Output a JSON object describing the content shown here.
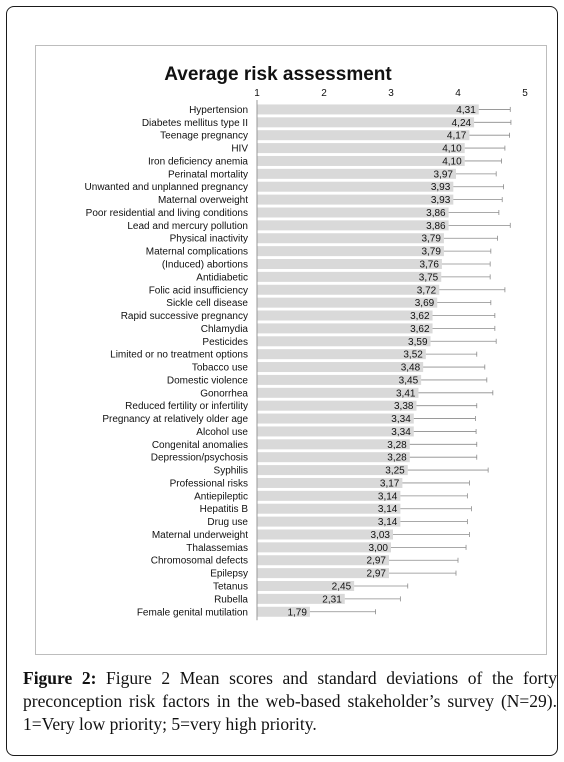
{
  "caption": {
    "figure_label": "Figure 2:",
    "text": " Figure 2 Mean scores and standard deviations of the forty preconception risk factors in the web-based stakeholder’s survey (N=29). 1=Very low priority; 5=very high priority."
  },
  "chart_data": {
    "type": "bar",
    "orientation": "horizontal",
    "title": "Average risk assessment",
    "xlim": [
      1,
      5
    ],
    "xticks": [
      "1",
      "2",
      "3",
      "4",
      "5"
    ],
    "bar_color": "#d9d9d9",
    "errorbar_color": "#8c8c8c",
    "categories": [
      "Hypertension",
      "Diabetes mellitus type II",
      "Teenage pregnancy",
      "HIV",
      "Iron deficiency anemia",
      "Perinatal mortality",
      "Unwanted and unplanned pregnancy",
      "Maternal overweight",
      "Poor residential and living conditions",
      "Lead and mercury pollution",
      "Physical inactivity",
      "Maternal complications",
      "(Induced) abortions",
      "Antidiabetic",
      "Folic acid insufficiency",
      "Sickle cell disease",
      "Rapid successive pregnancy",
      "Chlamydia",
      "Pesticides",
      "Limited or no treatment options",
      "Tobacco use",
      "Domestic violence",
      "Gonorrhea",
      "Reduced fertility or infertility",
      "Pregnancy at relatively older age",
      "Alcohol use",
      "Congenital anomalies",
      "Depression/psychosis",
      "Syphilis",
      "Professional risks",
      "Antiepileptic",
      "Hepatitis B",
      "Drug use",
      "Maternal underweight",
      "Thalassemias",
      "Chromosomal defects",
      "Epilepsy",
      "Tetanus",
      "Rubella",
      "Female genital mutilation"
    ],
    "values": [
      4.31,
      4.24,
      4.17,
      4.1,
      4.1,
      3.97,
      3.93,
      3.93,
      3.86,
      3.86,
      3.79,
      3.79,
      3.76,
      3.75,
      3.72,
      3.69,
      3.62,
      3.62,
      3.59,
      3.52,
      3.48,
      3.45,
      3.41,
      3.38,
      3.34,
      3.34,
      3.28,
      3.28,
      3.25,
      3.17,
      3.14,
      3.14,
      3.14,
      3.03,
      3.0,
      2.97,
      2.97,
      2.45,
      2.31,
      1.79
    ],
    "value_labels": [
      "4,31",
      "4,24",
      "4,17",
      "4,10",
      "4,10",
      "3,97",
      "3,93",
      "3,93",
      "3,86",
      "3,86",
      "3,79",
      "3,79",
      "3,76",
      "3,75",
      "3,72",
      "3,69",
      "3,62",
      "3,62",
      "3,59",
      "3,52",
      "3,48",
      "3,45",
      "3,41",
      "3,38",
      "3,34",
      "3,34",
      "3,28",
      "3,28",
      "3,25",
      "3,17",
      "3,14",
      "3,14",
      "3,14",
      "3,03",
      "3,00",
      "2,97",
      "2,97",
      "2,45",
      "2,31",
      "1,79"
    ],
    "errors": [
      0.47,
      0.55,
      0.6,
      0.6,
      0.55,
      0.6,
      0.75,
      0.73,
      0.75,
      0.92,
      0.8,
      0.7,
      0.72,
      0.73,
      0.98,
      0.8,
      0.93,
      0.93,
      0.98,
      0.76,
      0.92,
      0.98,
      1.11,
      0.9,
      0.92,
      0.93,
      1.0,
      1.0,
      1.2,
      1.0,
      1.0,
      1.06,
      1.0,
      1.14,
      1.12,
      1.03,
      1.0,
      0.8,
      0.83,
      0.98
    ]
  }
}
